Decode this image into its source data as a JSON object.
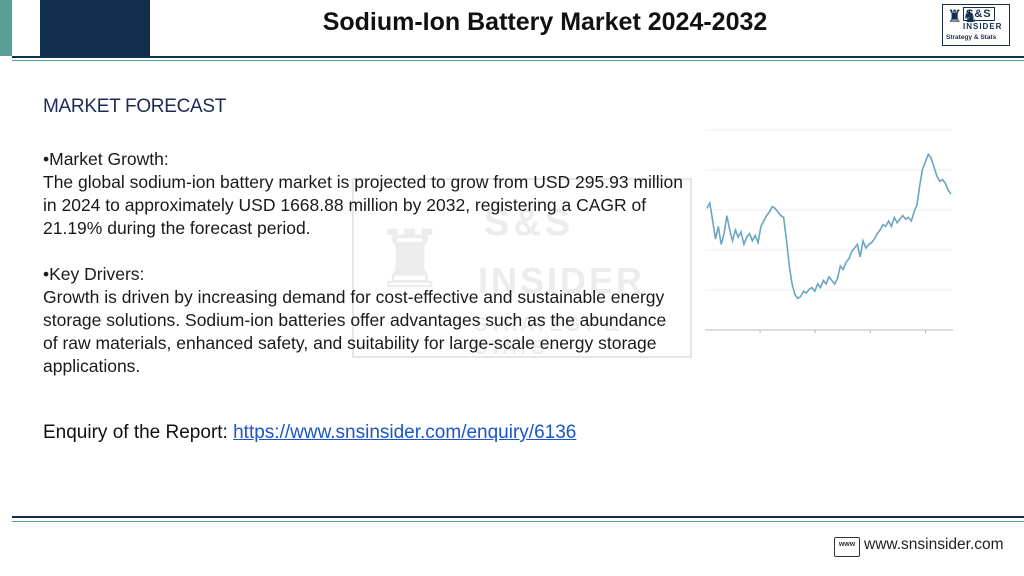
{
  "header": {
    "title": "Sodium-Ion Battery Market 2024-2032",
    "logo": {
      "mark": "S&S",
      "name": "INSIDER",
      "tagline": "Strategy & Stats",
      "icon": "chess-pieces-icon"
    }
  },
  "watermark": {
    "line1": "S&S",
    "line2": "INSIDER",
    "line3": "STRATEGY & STATS"
  },
  "content": {
    "heading": "MARKET FORECAST",
    "growth_title": "•Market Growth:",
    "growth_text": "The global sodium-ion battery market is projected to grow from USD 295.93 million in 2024 to approximately USD 1668.88 million by 2032, registering a CAGR of 21.19% during the forecast period.",
    "drivers_title": "•Key Drivers:",
    "drivers_text": "Growth is driven by increasing demand for cost-effective and sustainable energy storage solutions. Sodium-ion batteries offer advantages such as the abundance of raw materials, enhanced safety, and suitability for large-scale energy storage applications.",
    "enquiry_label": "Enquiry of the Report:",
    "enquiry_link": "https://www.snsinsider.com/enquiry/6136"
  },
  "chart_data": {
    "type": "line",
    "title": "",
    "xlabel": "",
    "ylabel": "",
    "grid": true,
    "line_color": "#6aa6c0",
    "ylim": [
      0,
      100
    ],
    "series": [
      {
        "values": [
          62,
          65,
          55,
          45,
          52,
          42,
          48,
          58,
          50,
          44,
          50,
          46,
          49,
          42,
          46,
          48,
          44,
          47,
          43,
          52,
          55,
          58,
          60,
          63,
          62,
          60,
          58,
          57,
          45,
          30,
          20,
          14,
          12,
          13,
          16,
          15,
          17,
          18,
          16,
          20,
          18,
          22,
          20,
          24,
          22,
          20,
          23,
          30,
          28,
          32,
          34,
          38,
          40,
          42,
          35,
          44,
          40,
          42,
          43,
          45,
          48,
          50,
          53,
          52,
          55,
          52,
          57,
          54,
          56,
          58,
          56,
          57,
          55,
          60,
          64,
          75,
          84,
          88,
          92,
          90,
          85,
          80,
          77,
          78,
          76,
          72,
          70
        ]
      }
    ]
  },
  "footer": {
    "icon": "www-icon",
    "icon_text": "www",
    "url": "www.snsinsider.com"
  }
}
